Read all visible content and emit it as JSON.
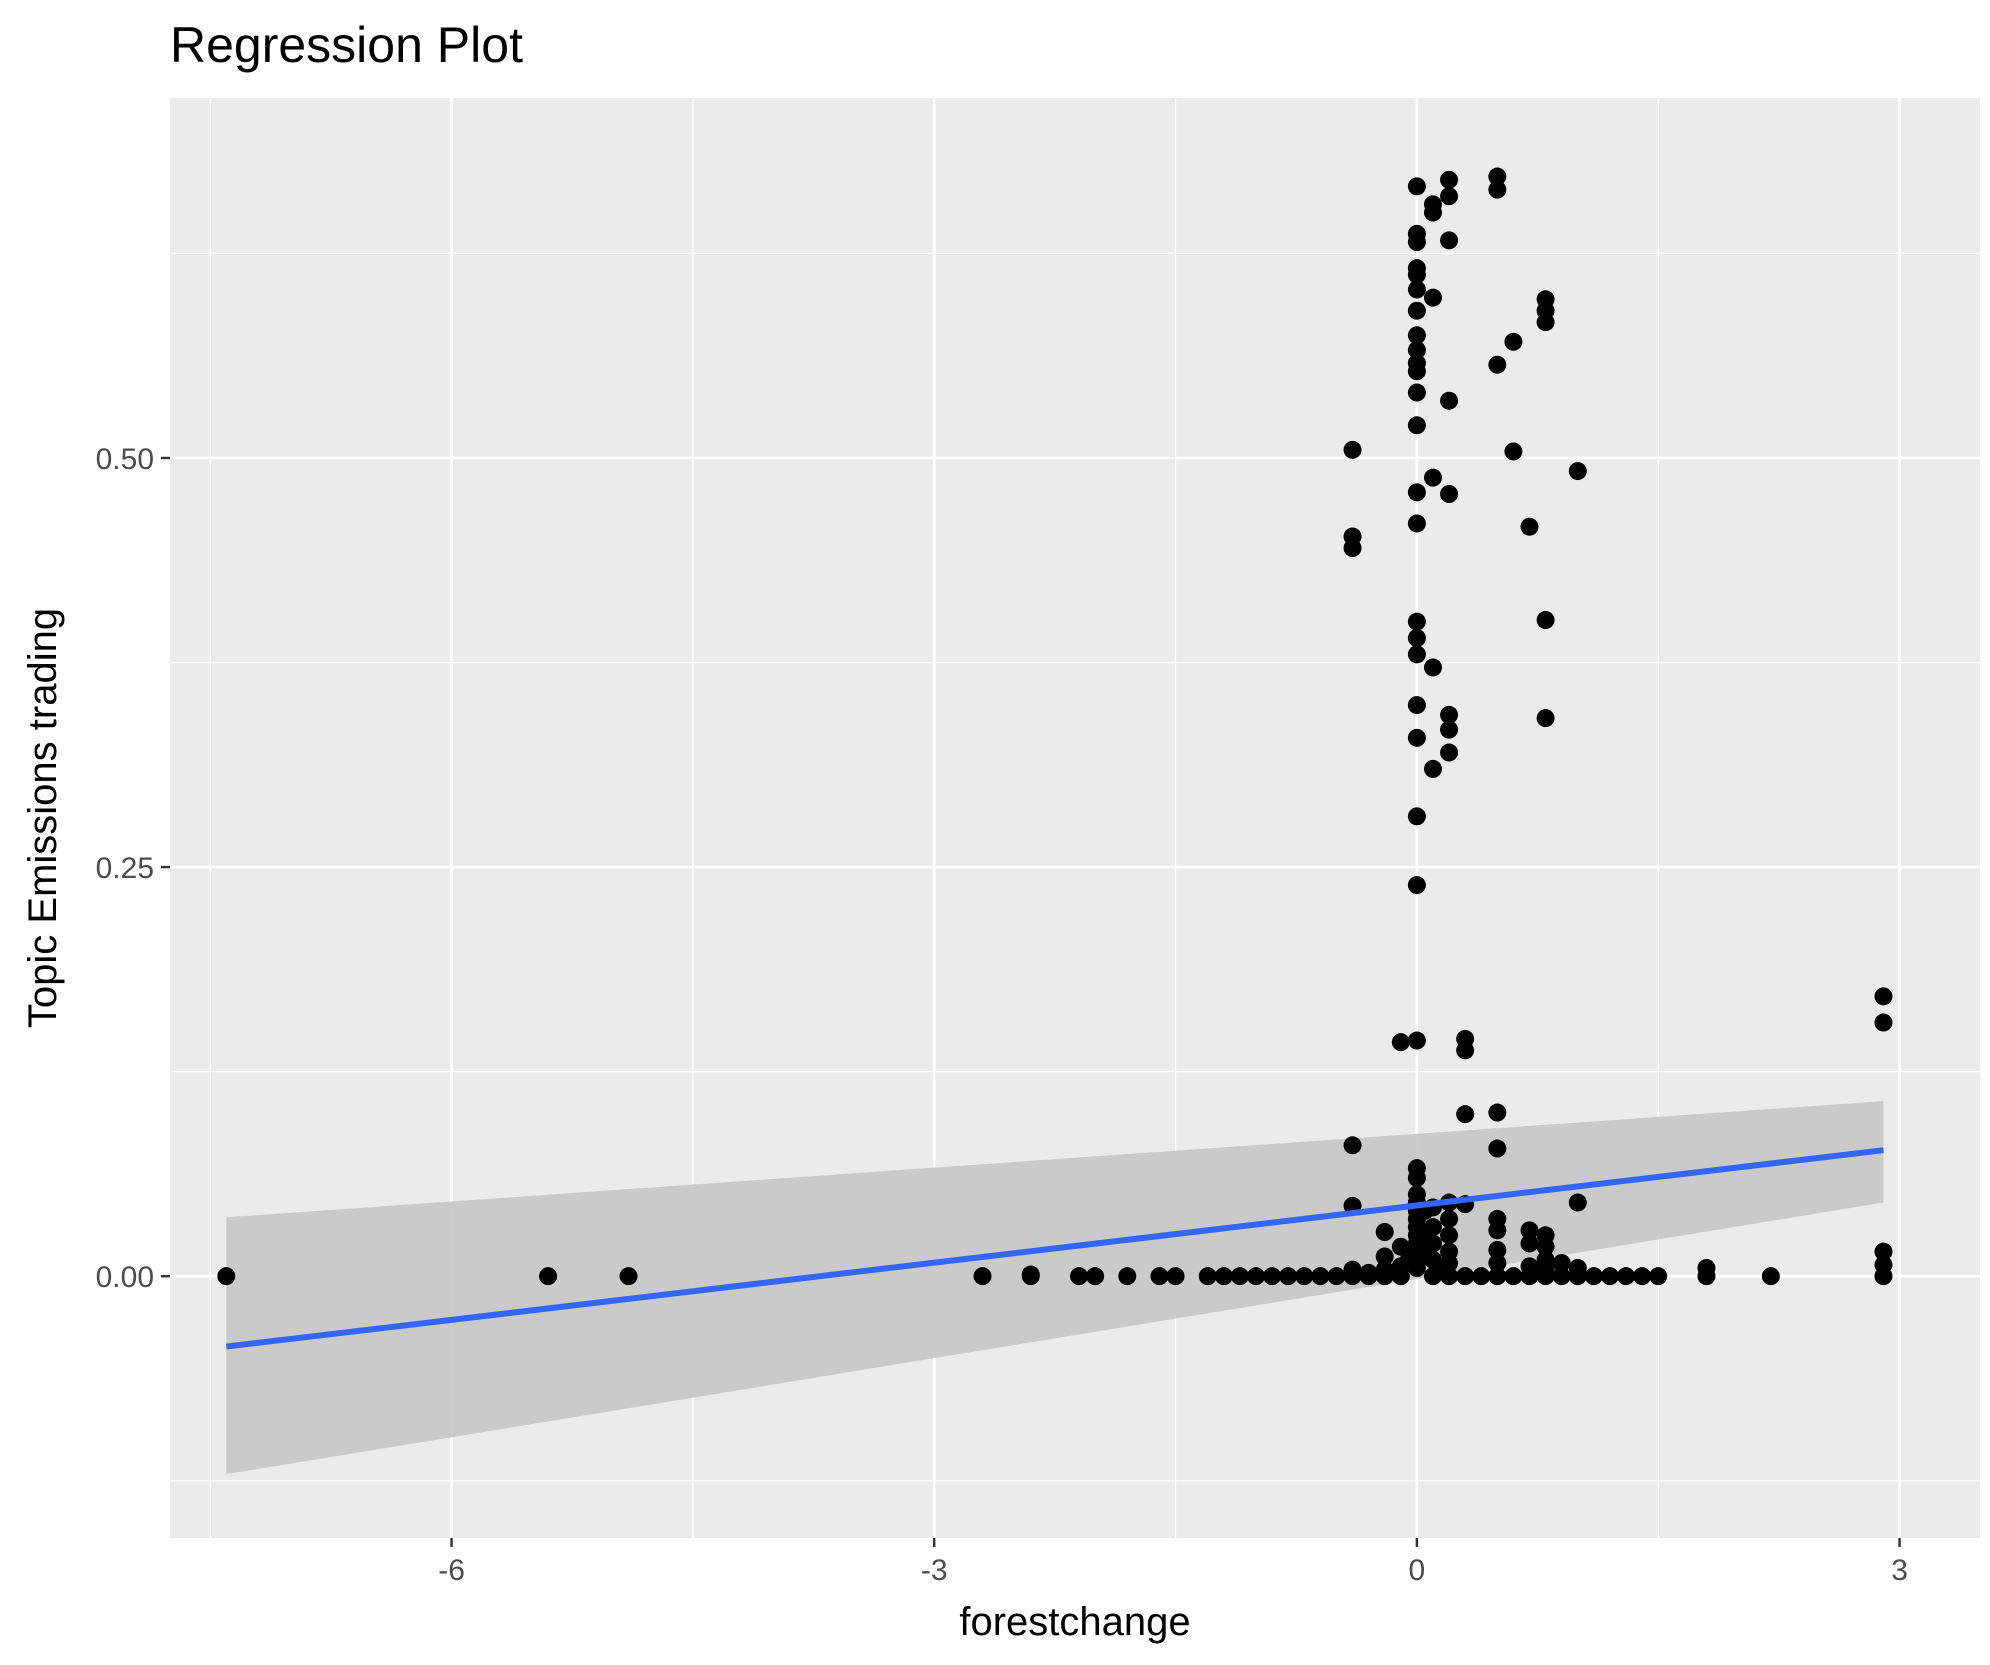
{
  "chart_data": {
    "type": "scatter",
    "title": "Regression Plot",
    "xlabel": "forestchange",
    "ylabel": "Topic Emissions trading",
    "xlim": [
      -7.75,
      3.5
    ],
    "ylim": [
      -0.16,
      0.72
    ],
    "x_ticks": [
      {
        "value": -6,
        "label": "-6"
      },
      {
        "value": -3,
        "label": "-3"
      },
      {
        "value": 0,
        "label": "0"
      },
      {
        "value": 3,
        "label": "3"
      }
    ],
    "y_ticks": [
      {
        "value": 0,
        "label": "0.00"
      },
      {
        "value": 0.25,
        "label": "0.25"
      },
      {
        "value": 0.5,
        "label": "0.50"
      }
    ],
    "x_minor": [
      -7.5,
      -4.5,
      -1.5,
      1.5
    ],
    "y_minor": [
      -0.125,
      0.125,
      0.375,
      0.625
    ],
    "grid": true,
    "legend": "none",
    "colors": {
      "panel": "#ebebeb",
      "grid": "#ffffff",
      "points": "#000000",
      "fit_line": "#3366ff",
      "confidence_band": "#c8c8c8"
    },
    "regression": {
      "x": [
        -7.4,
        2.9
      ],
      "y": [
        -0.043,
        0.077
      ],
      "ci_lower": [
        -0.121,
        0.045
      ],
      "ci_upper": [
        0.036,
        0.107
      ]
    },
    "points": [
      [
        -7.4,
        0
      ],
      [
        -5.4,
        0
      ],
      [
        -4.9,
        0
      ],
      [
        -2.7,
        0
      ],
      [
        -2.4,
        0
      ],
      [
        -2.4,
        0.001
      ],
      [
        -2.1,
        0
      ],
      [
        -2.0,
        0
      ],
      [
        -1.8,
        0
      ],
      [
        -1.6,
        0
      ],
      [
        -1.5,
        0
      ],
      [
        -1.3,
        0
      ],
      [
        -1.2,
        0
      ],
      [
        -1.1,
        0
      ],
      [
        -1.0,
        0
      ],
      [
        -0.9,
        0
      ],
      [
        -0.8,
        0
      ],
      [
        -0.7,
        0
      ],
      [
        -0.6,
        0
      ],
      [
        -0.5,
        0
      ],
      [
        -0.4,
        0
      ],
      [
        -0.3,
        0
      ],
      [
        -0.2,
        0
      ],
      [
        -0.1,
        0
      ],
      [
        0.1,
        0
      ],
      [
        0.2,
        0
      ],
      [
        0.3,
        0
      ],
      [
        0.4,
        0
      ],
      [
        0.5,
        0
      ],
      [
        0.6,
        0
      ],
      [
        0.7,
        0
      ],
      [
        0.8,
        0
      ],
      [
        0.9,
        0
      ],
      [
        1.0,
        0
      ],
      [
        1.1,
        0
      ],
      [
        1.2,
        0
      ],
      [
        1.3,
        0
      ],
      [
        1.4,
        0
      ],
      [
        1.5,
        0
      ],
      [
        1.8,
        0
      ],
      [
        2.2,
        0
      ],
      [
        2.9,
        0
      ],
      [
        -0.4,
        0.004
      ],
      [
        -0.3,
        0.002
      ],
      [
        -0.2,
        0.004
      ],
      [
        -0.2,
        0.027
      ],
      [
        -0.2,
        0.012
      ],
      [
        -0.1,
        0.018
      ],
      [
        -0.1,
        0.006
      ],
      [
        -0.05,
        0.01
      ],
      [
        0,
        0.066
      ],
      [
        0,
        0.06
      ],
      [
        0,
        0.05
      ],
      [
        0,
        0.045
      ],
      [
        0,
        0.04
      ],
      [
        0,
        0.035
      ],
      [
        0,
        0.03
      ],
      [
        0,
        0.025
      ],
      [
        0,
        0.02
      ],
      [
        0,
        0.015
      ],
      [
        0,
        0.01
      ],
      [
        0,
        0.005
      ],
      [
        0.05,
        0.04
      ],
      [
        0.05,
        0.025
      ],
      [
        0.05,
        0.015
      ],
      [
        0.1,
        0.042
      ],
      [
        0.1,
        0.03
      ],
      [
        0.1,
        0.02
      ],
      [
        0.1,
        0.01
      ],
      [
        0.15,
        0.005
      ],
      [
        0.2,
        0.045
      ],
      [
        0.2,
        0.035
      ],
      [
        0.2,
        0.025
      ],
      [
        0.2,
        0.015
      ],
      [
        0.2,
        0.008
      ],
      [
        0.3,
        0.044
      ],
      [
        0.5,
        0.035
      ],
      [
        0.5,
        0.028
      ],
      [
        0.5,
        0.016
      ],
      [
        0.5,
        0.008
      ],
      [
        0.7,
        0.028
      ],
      [
        0.7,
        0.02
      ],
      [
        0.7,
        0.006
      ],
      [
        0.8,
        0.025
      ],
      [
        0.8,
        0.018
      ],
      [
        0.8,
        0.01
      ],
      [
        0.8,
        0.004
      ],
      [
        0.9,
        0.008
      ],
      [
        1.0,
        0.005
      ],
      [
        1.8,
        0.005
      ],
      [
        2.9,
        0.007
      ],
      [
        2.9,
        0.015
      ],
      [
        -0.4,
        0.08
      ],
      [
        -0.4,
        0.043
      ],
      [
        -0.1,
        0.143
      ],
      [
        0,
        0.144
      ],
      [
        0.3,
        0.145
      ],
      [
        0.3,
        0.138
      ],
      [
        0.3,
        0.099
      ],
      [
        0.5,
        0.1
      ],
      [
        0.5,
        0.078
      ],
      [
        1.0,
        0.045
      ],
      [
        2.9,
        0.171
      ],
      [
        2.9,
        0.155
      ],
      [
        0,
        0.239
      ],
      [
        0,
        0.281
      ],
      [
        0,
        0.329
      ],
      [
        0,
        0.349
      ],
      [
        0,
        0.38
      ],
      [
        0,
        0.39
      ],
      [
        0,
        0.4
      ],
      [
        0.1,
        0.31
      ],
      [
        0.1,
        0.372
      ],
      [
        0.2,
        0.32
      ],
      [
        0.2,
        0.334
      ],
      [
        0.2,
        0.343
      ],
      [
        0.8,
        0.341
      ],
      [
        0.8,
        0.401
      ],
      [
        -0.4,
        0.445
      ],
      [
        -0.4,
        0.452
      ],
      [
        -0.4,
        0.505
      ],
      [
        0,
        0.46
      ],
      [
        0,
        0.479
      ],
      [
        0,
        0.52
      ],
      [
        0.1,
        0.488
      ],
      [
        0.2,
        0.478
      ],
      [
        0.6,
        0.504
      ],
      [
        0.7,
        0.458
      ],
      [
        1.0,
        0.492
      ],
      [
        0,
        0.54
      ],
      [
        0,
        0.553
      ],
      [
        0,
        0.558
      ],
      [
        0,
        0.566
      ],
      [
        0,
        0.575
      ],
      [
        0,
        0.59
      ],
      [
        0,
        0.603
      ],
      [
        0,
        0.612
      ],
      [
        0,
        0.616
      ],
      [
        0,
        0.632
      ],
      [
        0,
        0.637
      ],
      [
        0,
        0.666
      ],
      [
        0.1,
        0.598
      ],
      [
        0.1,
        0.65
      ],
      [
        0.1,
        0.655
      ],
      [
        0.2,
        0.535
      ],
      [
        0.2,
        0.633
      ],
      [
        0.2,
        0.66
      ],
      [
        0.2,
        0.67
      ],
      [
        0.5,
        0.557
      ],
      [
        0.5,
        0.664
      ],
      [
        0.5,
        0.672
      ],
      [
        0.6,
        0.571
      ],
      [
        0.8,
        0.583
      ],
      [
        0.8,
        0.59
      ],
      [
        0.8,
        0.597
      ]
    ]
  }
}
